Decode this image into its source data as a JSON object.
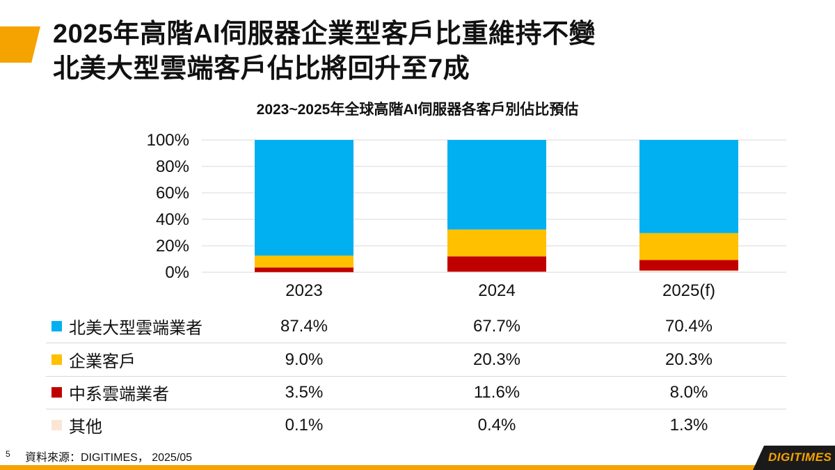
{
  "header": {
    "title_line1": "2025年高階AI伺服器企業型客戶比重維持不變",
    "title_line2": "北美大型雲端客戶佔比將回升至7成"
  },
  "chart_data": {
    "type": "bar",
    "stacked": true,
    "title": "2023~2025年全球高階AI伺服器各客戶別佔比預估",
    "categories": [
      "2023",
      "2024",
      "2025(f)"
    ],
    "yticks": [
      "100%",
      "80%",
      "60%",
      "40%",
      "20%",
      "0%"
    ],
    "ylim": [
      0,
      100
    ],
    "grid": true,
    "series": [
      {
        "name": "北美大型雲端業者",
        "color": "#00b0f0",
        "values": [
          87.4,
          67.7,
          70.4
        ],
        "labels": [
          "87.4%",
          "67.7%",
          "70.4%"
        ]
      },
      {
        "name": "企業客戶",
        "color": "#ffc000",
        "values": [
          9.0,
          20.3,
          20.3
        ],
        "labels": [
          "9.0%",
          "20.3%",
          "20.3%"
        ]
      },
      {
        "name": "中系雲端業者",
        "color": "#c00000",
        "values": [
          3.5,
          11.6,
          8.0
        ],
        "labels": [
          "3.5%",
          "11.6%",
          "8.0%"
        ]
      },
      {
        "name": "其他",
        "color": "#fbe5d6",
        "values": [
          0.1,
          0.4,
          1.3
        ],
        "labels": [
          "0.1%",
          "0.4%",
          "1.3%"
        ]
      }
    ]
  },
  "footer": {
    "page_number": "5",
    "source": "資料來源：DIGITIMES，  2025/05",
    "logo": "DIGITIMES"
  },
  "colors": {
    "accent": "#f5a300",
    "grid": "#d9d9d9"
  }
}
